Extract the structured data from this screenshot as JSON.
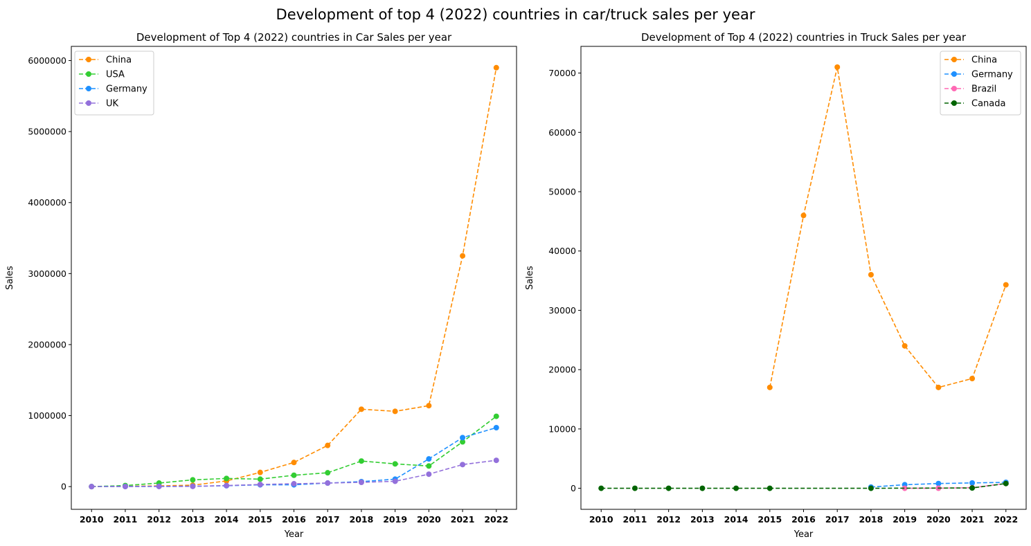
{
  "figure": {
    "suptitle": "Development of top 4 (2022) countries in car/truck sales per year"
  },
  "chart_data": [
    {
      "type": "line",
      "title": "Development of Top 4 (2022) countries in Car Sales per year",
      "xlabel": "Year",
      "ylabel": "Sales",
      "x": [
        2010,
        2011,
        2012,
        2013,
        2014,
        2015,
        2016,
        2017,
        2018,
        2019,
        2020,
        2021,
        2022
      ],
      "xticks": [
        "2010",
        "2011",
        "2012",
        "2013",
        "2014",
        "2015",
        "2016",
        "2017",
        "2018",
        "2019",
        "2020",
        "2021",
        "2022"
      ],
      "ylim": [
        -320000,
        6200000
      ],
      "yticks": [
        0,
        1000000,
        2000000,
        3000000,
        4000000,
        5000000,
        6000000
      ],
      "ytick_labels": [
        "0",
        "1000000",
        "2000000",
        "3000000",
        "4000000",
        "5000000",
        "6000000"
      ],
      "legend_position": "upper-left",
      "grid": false,
      "line_style": "dashed",
      "marker": "circle",
      "series": [
        {
          "name": "China",
          "color": "#FF8C00",
          "values": [
            0,
            5000,
            10000,
            20000,
            80000,
            200000,
            340000,
            580000,
            1090000,
            1060000,
            1140000,
            3250000,
            5900000
          ]
        },
        {
          "name": "USA",
          "color": "#32CD32",
          "values": [
            0,
            15000,
            50000,
            95000,
            115000,
            105000,
            160000,
            195000,
            360000,
            320000,
            290000,
            630000,
            990000
          ]
        },
        {
          "name": "Germany",
          "color": "#1E90FF",
          "values": [
            0,
            2000,
            3000,
            5000,
            12000,
            25000,
            25000,
            50000,
            70000,
            105000,
            390000,
            690000,
            830000
          ]
        },
        {
          "name": "UK",
          "color": "#9370DB",
          "values": [
            0,
            1000,
            2000,
            3000,
            15000,
            30000,
            40000,
            50000,
            60000,
            75000,
            175000,
            310000,
            370000
          ]
        }
      ]
    },
    {
      "type": "line",
      "title": "Development of Top 4 (2022) countries in Truck Sales per year",
      "xlabel": "Year",
      "ylabel": "Sales",
      "x": [
        2010,
        2011,
        2012,
        2013,
        2014,
        2015,
        2016,
        2017,
        2018,
        2019,
        2020,
        2021,
        2022
      ],
      "xticks": [
        "2010",
        "2011",
        "2012",
        "2013",
        "2014",
        "2015",
        "2016",
        "2017",
        "2018",
        "2019",
        "2020",
        "2021",
        "2022"
      ],
      "ylim": [
        -3550,
        74500
      ],
      "yticks": [
        0,
        10000,
        20000,
        30000,
        40000,
        50000,
        60000,
        70000
      ],
      "ytick_labels": [
        "0",
        "10000",
        "20000",
        "30000",
        "40000",
        "50000",
        "60000",
        "70000"
      ],
      "legend_position": "upper-right",
      "grid": false,
      "line_style": "dashed",
      "marker": "circle",
      "series": [
        {
          "name": "China",
          "color": "#FF8C00",
          "x": [
            2015,
            2016,
            2017,
            2018,
            2019,
            2020,
            2021,
            2022
          ],
          "values": [
            17000,
            46000,
            71000,
            36000,
            24000,
            17000,
            18500,
            34300
          ]
        },
        {
          "name": "Germany",
          "color": "#1E90FF",
          "x": [
            2018,
            2019,
            2020,
            2021,
            2022
          ],
          "values": [
            200,
            600,
            800,
            900,
            1000
          ]
        },
        {
          "name": "Brazil",
          "color": "#FF69B4",
          "x": [
            2019,
            2020,
            2021,
            2022
          ],
          "values": [
            0,
            10,
            100,
            800
          ]
        },
        {
          "name": "Canada",
          "color": "#006400",
          "x": [
            2010,
            2011,
            2012,
            2013,
            2014,
            2015,
            2018,
            2021,
            2022
          ],
          "values": [
            0,
            0,
            0,
            0,
            0,
            0,
            0,
            50,
            800
          ]
        }
      ]
    }
  ]
}
